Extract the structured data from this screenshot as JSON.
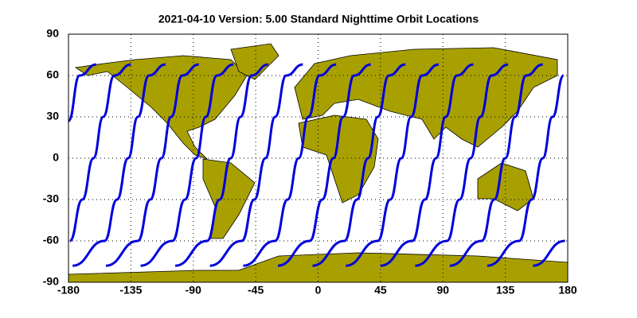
{
  "chart_data": {
    "type": "map",
    "title": "2021-04-10    Version: 5.00  Standard    Nighttime Orbit Locations",
    "xlim": [
      -180,
      180
    ],
    "ylim": [
      -90,
      90
    ],
    "xticks": [
      -180,
      -135,
      -90,
      -45,
      0,
      45,
      90,
      135,
      180
    ],
    "yticks": [
      -90,
      -60,
      -30,
      0,
      30,
      60,
      90
    ],
    "grid": true,
    "land_color": "#a8a000",
    "series": [
      {
        "color": "#0000dd",
        "x": [
          -180,
          -172,
          -160
        ],
        "values": [
          27,
          60,
          68
        ]
      },
      {
        "color": "#0000dd",
        "x": [
          -179,
          -170,
          -162,
          -155,
          -147,
          -135
        ],
        "values": [
          -60,
          -30,
          0,
          30,
          60,
          68
        ]
      },
      {
        "color": "#0000dd",
        "x": [
          -177,
          -154,
          -145,
          -137,
          -130,
          -122,
          -110
        ],
        "values": [
          -78,
          -60,
          -30,
          0,
          30,
          60,
          68
        ]
      },
      {
        "color": "#0000dd",
        "x": [
          -153,
          -130,
          -121,
          -113,
          -106,
          -98,
          -86
        ],
        "values": [
          -78,
          -60,
          -30,
          0,
          30,
          60,
          68
        ]
      },
      {
        "color": "#0000dd",
        "x": [
          -128,
          -105,
          -96,
          -88,
          -81,
          -73,
          -61
        ],
        "values": [
          -78,
          -60,
          -30,
          0,
          30,
          60,
          68
        ]
      },
      {
        "color": "#0000dd",
        "x": [
          -103,
          -80,
          -71,
          -63,
          -56,
          -48,
          -36
        ],
        "values": [
          -78,
          -60,
          -30,
          0,
          30,
          60,
          68
        ]
      },
      {
        "color": "#0000dd",
        "x": [
          -78,
          -55,
          -46,
          -38,
          -31,
          -23,
          -11
        ],
        "values": [
          -78,
          -60,
          -30,
          0,
          30,
          60,
          68
        ]
      },
      {
        "color": "#0000dd",
        "x": [
          -54,
          -31,
          -22,
          -14,
          -7,
          1,
          13
        ],
        "values": [
          -78,
          -60,
          -30,
          0,
          30,
          60,
          68
        ]
      },
      {
        "color": "#0000dd",
        "x": [
          -29,
          -6,
          3,
          11,
          18,
          26,
          38
        ],
        "values": [
          -78,
          -60,
          -30,
          0,
          30,
          60,
          68
        ]
      },
      {
        "color": "#0000dd",
        "x": [
          -4,
          19,
          28,
          36,
          43,
          51,
          63
        ],
        "values": [
          -78,
          -60,
          -30,
          0,
          30,
          60,
          68
        ]
      },
      {
        "color": "#0000dd",
        "x": [
          20,
          43,
          52,
          60,
          67,
          75,
          87
        ],
        "values": [
          -78,
          -60,
          -30,
          0,
          30,
          60,
          68
        ]
      },
      {
        "color": "#0000dd",
        "x": [
          45,
          68,
          77,
          85,
          92,
          100,
          112
        ],
        "values": [
          -78,
          -60,
          -30,
          0,
          30,
          60,
          68
        ]
      },
      {
        "color": "#0000dd",
        "x": [
          70,
          93,
          102,
          110,
          117,
          125,
          137
        ],
        "values": [
          -78,
          -60,
          -30,
          0,
          30,
          60,
          68
        ]
      },
      {
        "color": "#0000dd",
        "x": [
          95,
          118,
          127,
          135,
          142,
          150,
          162
        ],
        "values": [
          -78,
          -60,
          -30,
          0,
          30,
          60,
          68
        ]
      },
      {
        "color": "#0000dd",
        "x": [
          122,
          145,
          154,
          162,
          169,
          177
        ],
        "values": [
          -78,
          -60,
          -30,
          0,
          30,
          60
        ]
      },
      {
        "color": "#0000dd",
        "x": [
          155,
          178
        ],
        "values": [
          -78,
          -60
        ]
      }
    ]
  }
}
